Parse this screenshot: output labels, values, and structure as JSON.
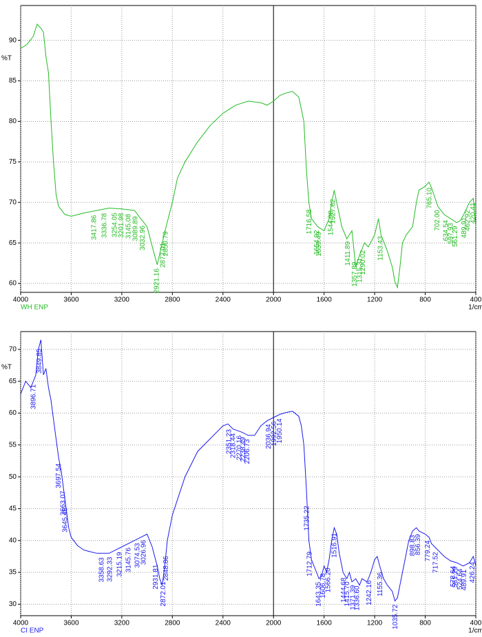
{
  "chart_data": [
    {
      "type": "line",
      "y_label": "%T",
      "x_label": "1/cm",
      "xlim": [
        4000,
        400
      ],
      "ylim": [
        58.9,
        94.3
      ],
      "xticks": [
        4000,
        3600,
        3200,
        2800,
        2400,
        2000,
        1600,
        1200,
        800,
        400
      ],
      "yticks": [
        60,
        65,
        70,
        75,
        80,
        85,
        90
      ],
      "grid": true,
      "vline": 2000,
      "series": [
        {
          "name": "WH ENP",
          "color": "#22bb22",
          "x": [
            4000,
            3950,
            3900,
            3870,
            3840,
            3820,
            3800,
            3780,
            3760,
            3740,
            3720,
            3700,
            3650,
            3600,
            3500,
            3400,
            3300,
            3200,
            3100,
            3050,
            3000,
            2950,
            2920,
            2880,
            2850,
            2800,
            2760,
            2700,
            2600,
            2500,
            2400,
            2300,
            2200,
            2100,
            2050,
            2000,
            1950,
            1900,
            1850,
            1800,
            1760,
            1740,
            1720,
            1700,
            1650,
            1600,
            1560,
            1540,
            1520,
            1500,
            1460,
            1420,
            1380,
            1350,
            1320,
            1280,
            1250,
            1200,
            1170,
            1150,
            1100,
            1060,
            1040,
            1020,
            1000,
            980,
            950,
            900,
            870,
            850,
            800,
            770,
            750,
            700,
            650,
            600,
            550,
            520,
            490,
            450,
            420,
            400
          ],
          "values": [
            89,
            89.5,
            90.5,
            92,
            91.5,
            91,
            88,
            86,
            80,
            75,
            71,
            69.5,
            68.5,
            68.3,
            68.7,
            69,
            69.3,
            69.2,
            69,
            68,
            67,
            64,
            62.3,
            65,
            67,
            70,
            73,
            75,
            77.5,
            79.5,
            81,
            82,
            82.5,
            82.3,
            82,
            82.5,
            83.2,
            83.5,
            83.7,
            83,
            80,
            74,
            70,
            68,
            67,
            66.5,
            68,
            70,
            71.5,
            70,
            67,
            65.5,
            66.5,
            62,
            63.5,
            65,
            64.5,
            66,
            68,
            66,
            64,
            62,
            60.2,
            59.5,
            62,
            65,
            66,
            67,
            70,
            71.5,
            72,
            72.5,
            71.8,
            69.5,
            68.5,
            68,
            67.5,
            67.8,
            68.7,
            70,
            70.5,
            67
          ]
        }
      ],
      "peak_labels": [
        3417.86,
        3336.78,
        3254.05,
        3201.98,
        3145.08,
        3089.89,
        3032.96,
        2921.16,
        2872.01,
        2850.79,
        1716.58,
        1654.92,
        1639.49,
        1544.98,
        1527.62,
        1411.89,
        1357.89,
        1315.31,
        1290.02,
        1153.43,
        {
          "value": 765.1,
          "label": "765.10"
        },
        {
          "value": 702.0,
          "label": "702.00"
        },
        634.54,
        597.93,
        561.29,
        489.91,
        462.92,
        420.41
      ]
    },
    {
      "type": "line",
      "y_label": "%T",
      "x_label": "1/cm",
      "xlim": [
        4000,
        400
      ],
      "ylim": [
        28.2,
        72.8
      ],
      "xticks": [
        4000,
        3600,
        3200,
        2800,
        2400,
        2000,
        1600,
        1200,
        800,
        400
      ],
      "yticks": [
        30,
        35,
        40,
        45,
        50,
        55,
        60,
        65,
        70
      ],
      "grid": true,
      "vline": 2000,
      "series": [
        {
          "name": "CI ENP",
          "color": "#1a1aee",
          "x": [
            4000,
            3960,
            3920,
            3880,
            3860,
            3840,
            3820,
            3800,
            3780,
            3760,
            3740,
            3720,
            3700,
            3680,
            3660,
            3640,
            3620,
            3600,
            3550,
            3500,
            3400,
            3300,
            3250,
            3200,
            3100,
            3050,
            3000,
            2960,
            2920,
            2900,
            2880,
            2860,
            2840,
            2800,
            2700,
            2600,
            2500,
            2400,
            2360,
            2320,
            2250,
            2200,
            2150,
            2100,
            2050,
            2000,
            1950,
            1900,
            1850,
            1800,
            1780,
            1760,
            1740,
            1720,
            1700,
            1660,
            1640,
            1620,
            1600,
            1580,
            1560,
            1540,
            1520,
            1500,
            1480,
            1450,
            1420,
            1400,
            1380,
            1350,
            1320,
            1300,
            1260,
            1230,
            1200,
            1180,
            1160,
            1130,
            1100,
            1060,
            1040,
            1020,
            1000,
            960,
            930,
            900,
            870,
            850,
            800,
            770,
            750,
            700,
            650,
            600,
            550,
            500,
            450,
            420,
            400
          ],
          "values": [
            63,
            65,
            64,
            66,
            70,
            71.5,
            66,
            67,
            64,
            62,
            59,
            56,
            53,
            51,
            48,
            45,
            42,
            40.5,
            39.2,
            38.5,
            38,
            38,
            38.5,
            39,
            40,
            40.5,
            41,
            39,
            36,
            34,
            33,
            36,
            40,
            44,
            50,
            54,
            56,
            58,
            58.3,
            57.5,
            57,
            56.5,
            56.5,
            58,
            58.8,
            59.3,
            59.8,
            60.1,
            60.3,
            59.5,
            58,
            55,
            48,
            40,
            37,
            35,
            34,
            34.5,
            36,
            35,
            37,
            40,
            42,
            41,
            38,
            35,
            34,
            35,
            33.5,
            34,
            33,
            34,
            33.5,
            35,
            37,
            37.5,
            36,
            34,
            33,
            32,
            30.5,
            31,
            33,
            37,
            40,
            41.5,
            42,
            41.5,
            41,
            40.5,
            39.5,
            38.5,
            37.5,
            36.8,
            36.5,
            36,
            36.5,
            37.5,
            36
          ]
        }
      ],
      "peak_labels": [
        3896.71,
        3849.85,
        3697.54,
        3663.07,
        3645.46,
        3358.63,
        3292.33,
        3215.19,
        3145.76,
        3074.53,
        3026.96,
        2931.81,
        2872.01,
        2848.86,
        2351.23,
        2318.44,
        2270.16,
        2238.49,
        2206.73,
        2036.94,
        1992.56,
        1950.14,
        1735.22,
        1712.79,
        1643.35,
        1606.78,
        {
          "value": 1566.2,
          "label": "1566.20"
        },
        1516.91,
        1444.68,
        {
          "value": 1415.7,
          "label": "1415.70"
        },
        1371.39,
        {
          "value": 1336.6,
          "label": "1336.60"
        },
        1242.16,
        1155.36,
        1035.72,
        898.83,
        856.39,
        779.24,
        717.52,
        578.64,
        561.29,
        524.64,
        489.91,
        426.24
      ]
    }
  ]
}
